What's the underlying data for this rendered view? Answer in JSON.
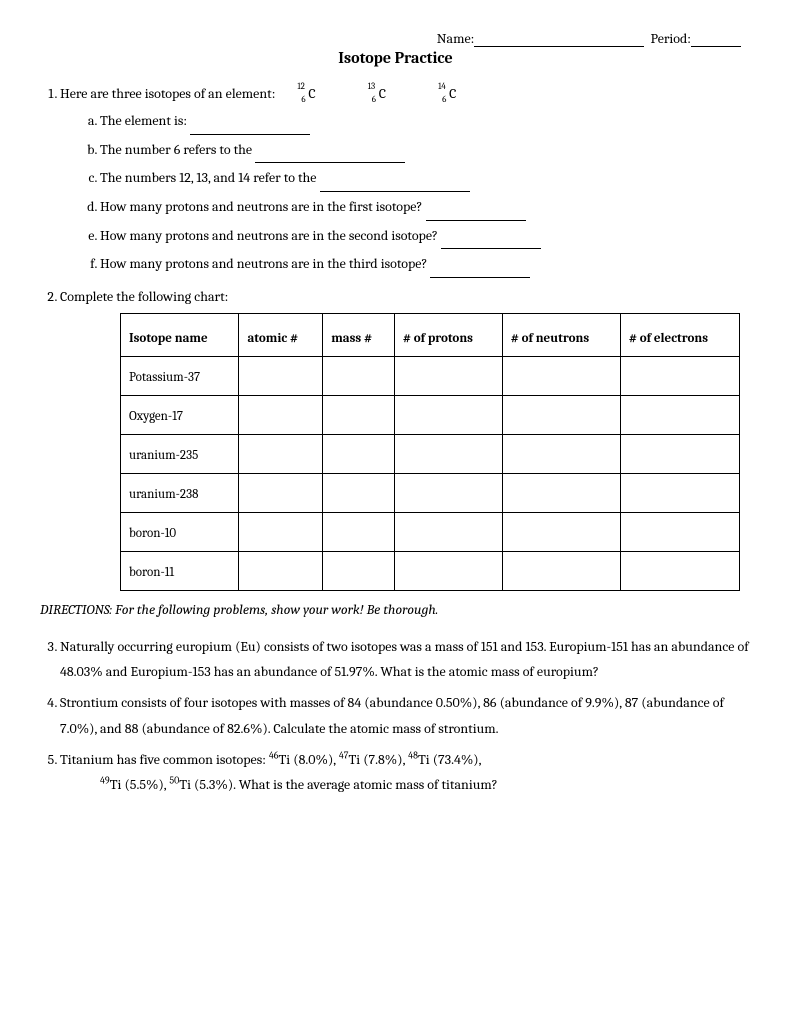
{
  "header": {
    "name_label": "Name:",
    "period_label": "Period:"
  },
  "title": "Isotope Practice",
  "q1": {
    "intro": "Here are three isotopes of an element:",
    "isotopes": [
      {
        "mass": "12",
        "atomic": "6",
        "symbol": "C"
      },
      {
        "mass": "13",
        "atomic": "6",
        "symbol": "C"
      },
      {
        "mass": "14",
        "atomic": "6",
        "symbol": "C"
      }
    ],
    "a": "The element is:",
    "b": "The number 6 refers to the",
    "c": "The numbers 12, 13, and 14 refer to the",
    "d": "How many protons and neutrons are in the first isotope?",
    "e": "How many protons and neutrons are in the second isotope?",
    "f": "How many protons and neutrons are in the third isotope?"
  },
  "q2": {
    "intro": "Complete the following chart:",
    "headers": [
      "Isotope name",
      "atomic #",
      "mass #",
      "# of protons",
      "# of neutrons",
      "# of electrons"
    ],
    "rows": [
      "Potassium-37",
      "Oxygen-17",
      "uranium-235",
      "uranium-238",
      "boron-10",
      "boron-11"
    ]
  },
  "directions": "DIRECTIONS:  For the following problems, show your work!  Be thorough.",
  "q3": "Naturally occurring europium (Eu) consists of two isotopes was a mass of 151 and 153.  Europium-151 has an abundance of 48.03% and Europium-153 has an abundance of 51.97%.  What is the atomic mass of europium?",
  "q4": "Strontium consists of four isotopes with masses of 84 (abundance 0.50%), 86 (abundance of 9.9%), 87 (abundance of 7.0%), and 88 (abundance of 82.6%).  Calculate the atomic mass of strontium.",
  "q5": {
    "part1": "Titanium has five common isotopes: ",
    "i1_sup": "46",
    "i1": "Ti (8.0%), ",
    "i2_sup": "47",
    "i2": "Ti (7.8%), ",
    "i3_sup": "48",
    "i3": "Ti (73.4%),",
    "i4_sup": "49",
    "i4": "Ti (5.5%), ",
    "i5_sup": "50",
    "i5": "Ti (5.3%). What is the average atomic mass of titanium?"
  }
}
